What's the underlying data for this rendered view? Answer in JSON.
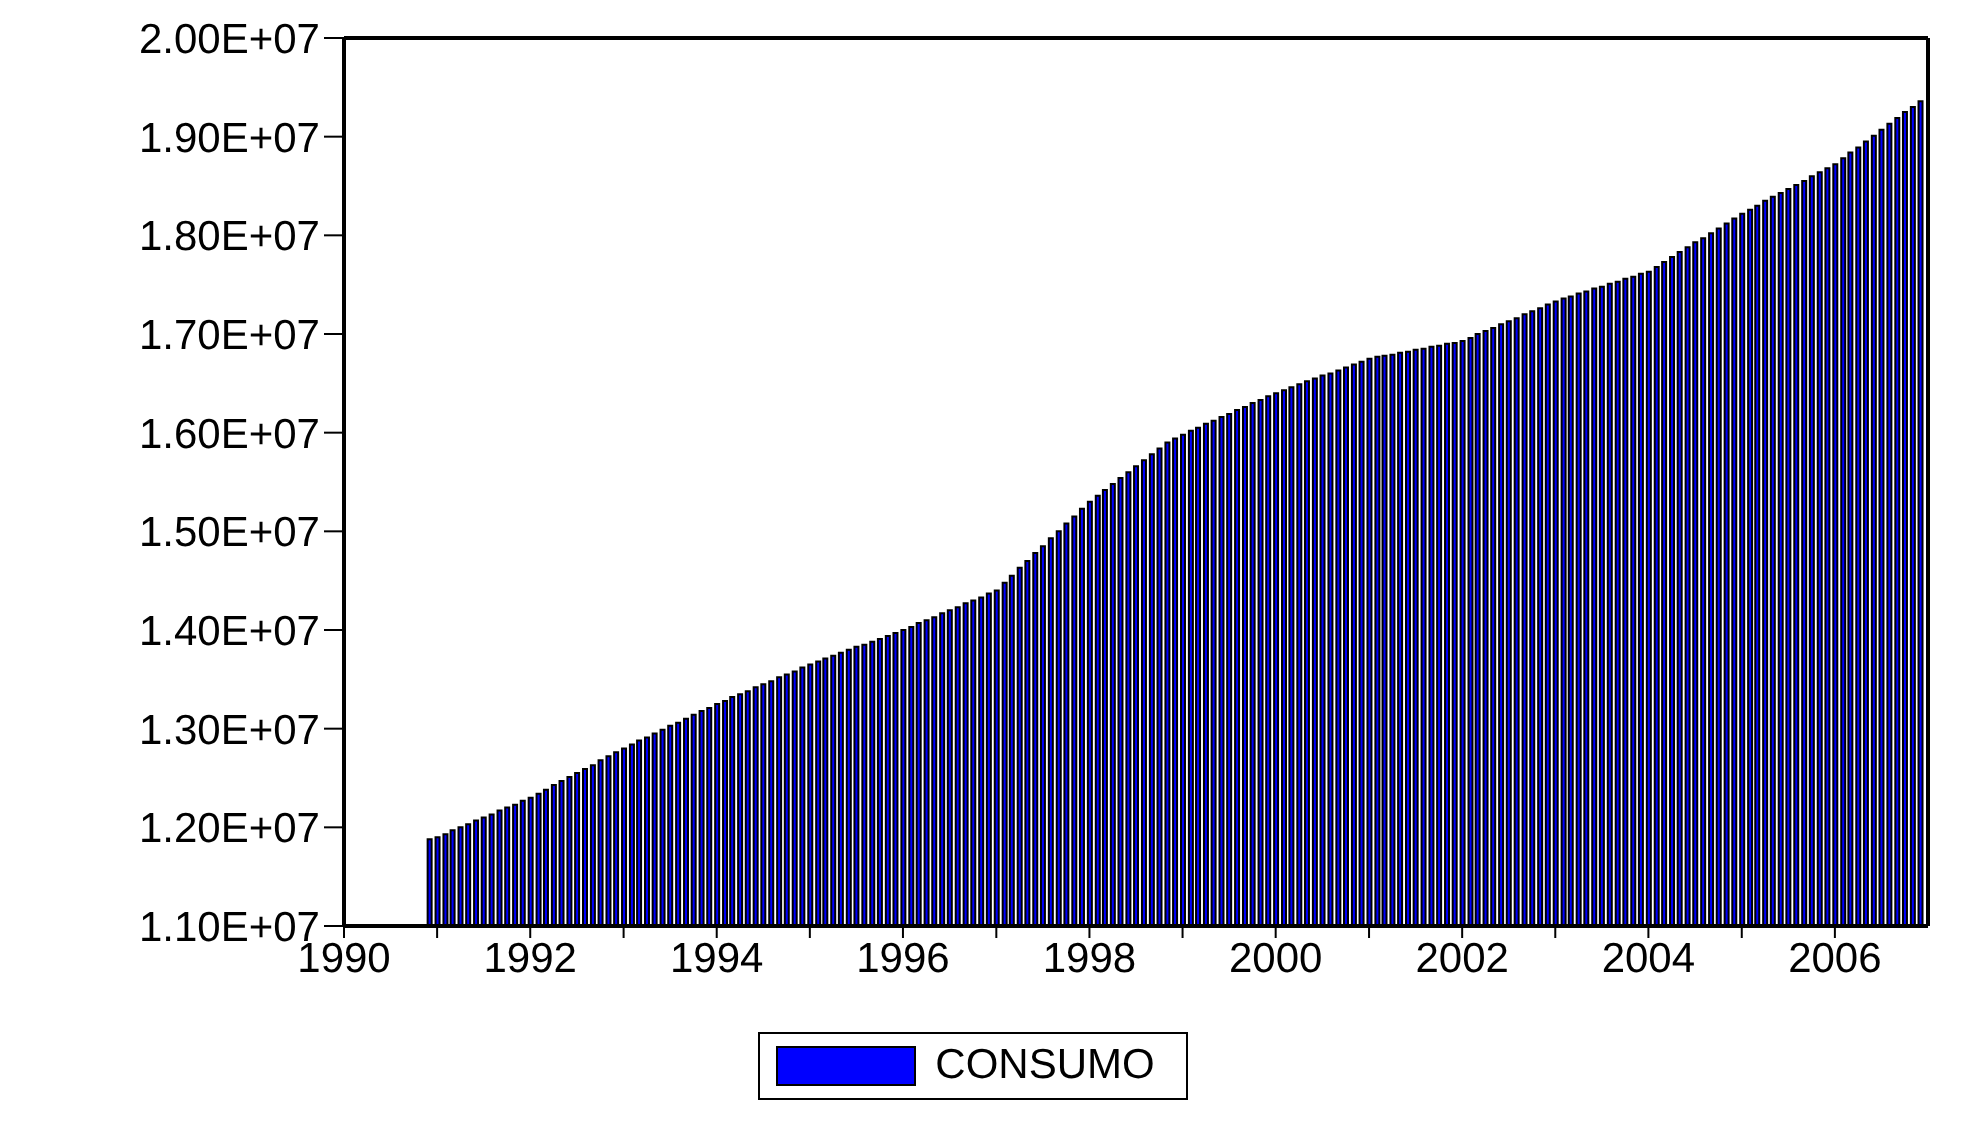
{
  "chart_data": {
    "type": "bar",
    "x": [
      "1990-12",
      "1991-01",
      "1991-02",
      "1991-03",
      "1991-04",
      "1991-05",
      "1991-06",
      "1991-07",
      "1991-08",
      "1991-09",
      "1991-10",
      "1991-11",
      "1991-12",
      "1992-01",
      "1992-02",
      "1992-03",
      "1992-04",
      "1992-05",
      "1992-06",
      "1992-07",
      "1992-08",
      "1992-09",
      "1992-10",
      "1992-11",
      "1992-12",
      "1993-01",
      "1993-02",
      "1993-03",
      "1993-04",
      "1993-05",
      "1993-06",
      "1993-07",
      "1993-08",
      "1993-09",
      "1993-10",
      "1993-11",
      "1993-12",
      "1994-01",
      "1994-02",
      "1994-03",
      "1994-04",
      "1994-05",
      "1994-06",
      "1994-07",
      "1994-08",
      "1994-09",
      "1994-10",
      "1994-11",
      "1994-12",
      "1995-01",
      "1995-02",
      "1995-03",
      "1995-04",
      "1995-05",
      "1995-06",
      "1995-07",
      "1995-08",
      "1995-09",
      "1995-10",
      "1995-11",
      "1995-12",
      "1996-01",
      "1996-02",
      "1996-03",
      "1996-04",
      "1996-05",
      "1996-06",
      "1996-07",
      "1996-08",
      "1996-09",
      "1996-10",
      "1996-11",
      "1996-12",
      "1997-01",
      "1997-02",
      "1997-03",
      "1997-04",
      "1997-05",
      "1997-06",
      "1997-07",
      "1997-08",
      "1997-09",
      "1997-10",
      "1997-11",
      "1997-12",
      "1998-01",
      "1998-02",
      "1998-03",
      "1998-04",
      "1998-05",
      "1998-06",
      "1998-07",
      "1998-08",
      "1998-09",
      "1998-10",
      "1998-11",
      "1998-12",
      "1999-01",
      "1999-02",
      "1999-03",
      "1999-04",
      "1999-05",
      "1999-06",
      "1999-07",
      "1999-08",
      "1999-09",
      "1999-10",
      "1999-11",
      "1999-12",
      "2000-01",
      "2000-02",
      "2000-03",
      "2000-04",
      "2000-05",
      "2000-06",
      "2000-07",
      "2000-08",
      "2000-09",
      "2000-10",
      "2000-11",
      "2000-12",
      "2001-01",
      "2001-02",
      "2001-03",
      "2001-04",
      "2001-05",
      "2001-06",
      "2001-07",
      "2001-08",
      "2001-09",
      "2001-10",
      "2001-11",
      "2001-12",
      "2002-01",
      "2002-02",
      "2002-03",
      "2002-04",
      "2002-05",
      "2002-06",
      "2002-07",
      "2002-08",
      "2002-09",
      "2002-10",
      "2002-11",
      "2002-12",
      "2003-01",
      "2003-02",
      "2003-03",
      "2003-04",
      "2003-05",
      "2003-06",
      "2003-07",
      "2003-08",
      "2003-09",
      "2003-10",
      "2003-11",
      "2003-12",
      "2004-01",
      "2004-02",
      "2004-03",
      "2004-04",
      "2004-05",
      "2004-06",
      "2004-07",
      "2004-08",
      "2004-09",
      "2004-10",
      "2004-11",
      "2004-12",
      "2005-01",
      "2005-02",
      "2005-03",
      "2005-04",
      "2005-05",
      "2005-06",
      "2005-07",
      "2005-08",
      "2005-09",
      "2005-10",
      "2005-11",
      "2005-12",
      "2006-01",
      "2006-02",
      "2006-03",
      "2006-04",
      "2006-05",
      "2006-06",
      "2006-07",
      "2006-08",
      "2006-09",
      "2006-10",
      "2006-11",
      "2006-12"
    ],
    "series": [
      {
        "name": "CONSUMO",
        "color": "#0000ff",
        "values": [
          11880000,
          11900000,
          11930000,
          11970000,
          12000000,
          12030000,
          12070000,
          12100000,
          12130000,
          12170000,
          12200000,
          12230000,
          12270000,
          12300000,
          12340000,
          12380000,
          12430000,
          12470000,
          12510000,
          12550000,
          12590000,
          12630000,
          12680000,
          12720000,
          12760000,
          12800000,
          12840000,
          12880000,
          12910000,
          12950000,
          12990000,
          13030000,
          13060000,
          13100000,
          13140000,
          13180000,
          13210000,
          13250000,
          13280000,
          13320000,
          13350000,
          13380000,
          13420000,
          13450000,
          13480000,
          13520000,
          13550000,
          13580000,
          13620000,
          13650000,
          13680000,
          13710000,
          13740000,
          13770000,
          13800000,
          13830000,
          13850000,
          13880000,
          13910000,
          13940000,
          13970000,
          14000000,
          14030000,
          14070000,
          14100000,
          14130000,
          14170000,
          14200000,
          14230000,
          14270000,
          14300000,
          14330000,
          14370000,
          14400000,
          14480000,
          14550000,
          14630000,
          14700000,
          14780000,
          14850000,
          14930000,
          15000000,
          15080000,
          15150000,
          15230000,
          15300000,
          15360000,
          15420000,
          15480000,
          15540000,
          15600000,
          15660000,
          15720000,
          15780000,
          15840000,
          15900000,
          15940000,
          15980000,
          16020000,
          16050000,
          16090000,
          16120000,
          16160000,
          16190000,
          16230000,
          16260000,
          16300000,
          16330000,
          16370000,
          16400000,
          16430000,
          16460000,
          16490000,
          16520000,
          16550000,
          16580000,
          16600000,
          16630000,
          16660000,
          16690000,
          16720000,
          16750000,
          16770000,
          16780000,
          16790000,
          16810000,
          16820000,
          16840000,
          16850000,
          16870000,
          16880000,
          16900000,
          16910000,
          16930000,
          16960000,
          17000000,
          17030000,
          17060000,
          17100000,
          17130000,
          17160000,
          17200000,
          17230000,
          17260000,
          17300000,
          17330000,
          17360000,
          17380000,
          17410000,
          17430000,
          17460000,
          17480000,
          17510000,
          17530000,
          17560000,
          17580000,
          17610000,
          17630000,
          17680000,
          17730000,
          17780000,
          17830000,
          17880000,
          17930000,
          17970000,
          18020000,
          18070000,
          18120000,
          18170000,
          18220000,
          18260000,
          18300000,
          18350000,
          18390000,
          18430000,
          18470000,
          18510000,
          18550000,
          18600000,
          18640000,
          18680000,
          18720000,
          18780000,
          18840000,
          18890000,
          18950000,
          19010000,
          19070000,
          19130000,
          19190000,
          19250000,
          19300000,
          19360000
        ]
      }
    ],
    "xlim": [
      "1990-01",
      "2007-01"
    ],
    "xticks": [
      {
        "value": "1990-01",
        "label": "1990"
      },
      {
        "value": "1991-01",
        "label": null
      },
      {
        "value": "1992-01",
        "label": "1992"
      },
      {
        "value": "1993-01",
        "label": null
      },
      {
        "value": "1994-01",
        "label": "1994"
      },
      {
        "value": "1995-01",
        "label": null
      },
      {
        "value": "1996-01",
        "label": "1996"
      },
      {
        "value": "1997-01",
        "label": null
      },
      {
        "value": "1998-01",
        "label": "1998"
      },
      {
        "value": "1999-01",
        "label": null
      },
      {
        "value": "2000-01",
        "label": "2000"
      },
      {
        "value": "2001-01",
        "label": null
      },
      {
        "value": "2002-01",
        "label": "2002"
      },
      {
        "value": "2003-01",
        "label": null
      },
      {
        "value": "2004-01",
        "label": "2004"
      },
      {
        "value": "2005-01",
        "label": null
      },
      {
        "value": "2006-01",
        "label": "2006"
      }
    ],
    "ylim": [
      11000000,
      20000000
    ],
    "yticks": [
      {
        "value": 11000000,
        "label": "1.10E+07"
      },
      {
        "value": 12000000,
        "label": "1.20E+07"
      },
      {
        "value": 13000000,
        "label": "1.30E+07"
      },
      {
        "value": 14000000,
        "label": "1.40E+07"
      },
      {
        "value": 15000000,
        "label": "1.50E+07"
      },
      {
        "value": 16000000,
        "label": "1.60E+07"
      },
      {
        "value": 17000000,
        "label": "1.70E+07"
      },
      {
        "value": 18000000,
        "label": "1.80E+07"
      },
      {
        "value": 19000000,
        "label": "1.90E+07"
      },
      {
        "value": 20000000,
        "label": "2.00E+07"
      }
    ],
    "legend": "bottom"
  }
}
